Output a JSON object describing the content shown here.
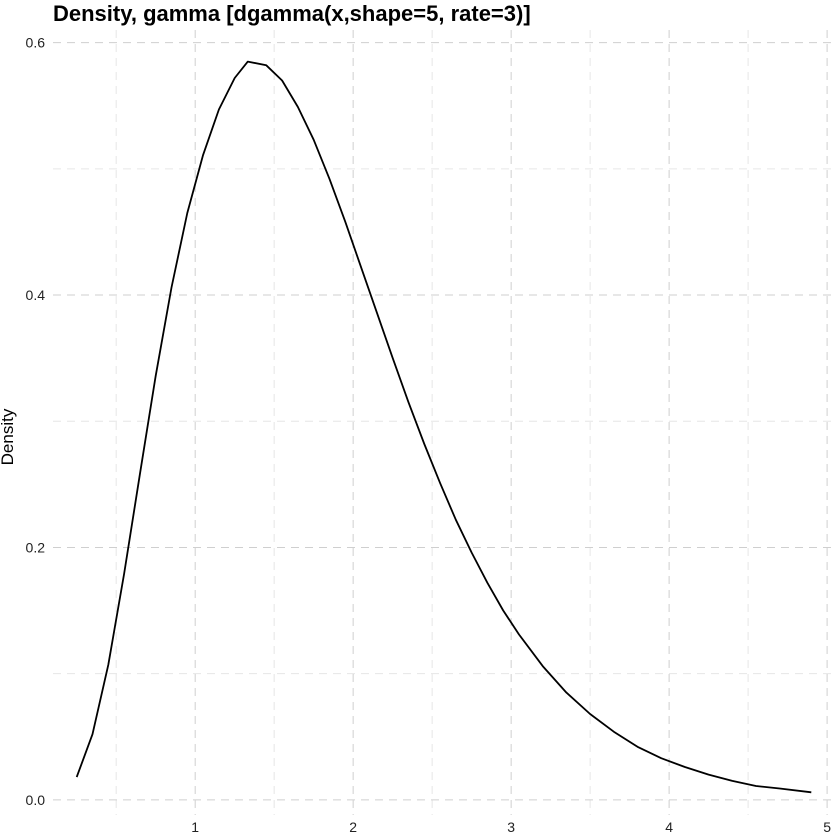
{
  "chart_data": {
    "type": "line",
    "title": "Density, gamma [dgamma(x,shape=5, rate=3)]",
    "xlabel": "",
    "ylabel": "Density",
    "xlim": [
      0.1,
      5.05
    ],
    "ylim": [
      -0.012,
      0.61
    ],
    "x_ticks": [
      1,
      2,
      3,
      4,
      5
    ],
    "x_tick_labels": [
      "1",
      "2",
      "3",
      "4",
      "5"
    ],
    "y_ticks": [
      0.0,
      0.2,
      0.4,
      0.6
    ],
    "y_tick_labels": [
      "0.0",
      "0.2",
      "0.4",
      "0.6"
    ],
    "x_minor_ticks": [
      0.5,
      1.5,
      2.5,
      3.5,
      4.5
    ],
    "y_minor_ticks": [
      0.1,
      0.3,
      0.5
    ],
    "grid": true,
    "legend": "none",
    "series": [
      {
        "color": "#000000",
        "x": [
          0.25,
          0.35,
          0.45,
          0.55,
          0.65,
          0.75,
          0.85,
          0.95,
          1.05,
          1.15,
          1.25,
          1.333,
          1.45,
          1.55,
          1.65,
          1.75,
          1.85,
          1.95,
          2.05,
          2.15,
          2.25,
          2.35,
          2.45,
          2.55,
          2.65,
          2.75,
          2.85,
          2.95,
          3.05,
          3.2,
          3.35,
          3.5,
          3.65,
          3.8,
          3.95,
          4.1,
          4.25,
          4.4,
          4.55,
          4.7,
          4.9
        ],
        "y": [
          0.018,
          0.052,
          0.107,
          0.179,
          0.258,
          0.336,
          0.406,
          0.465,
          0.511,
          0.547,
          0.572,
          0.585,
          0.582,
          0.57,
          0.549,
          0.523,
          0.492,
          0.458,
          0.422,
          0.386,
          0.35,
          0.315,
          0.282,
          0.251,
          0.222,
          0.196,
          0.172,
          0.15,
          0.131,
          0.106,
          0.085,
          0.068,
          0.054,
          0.042,
          0.033,
          0.026,
          0.02,
          0.015,
          0.011,
          0.009,
          0.006
        ]
      }
    ]
  }
}
